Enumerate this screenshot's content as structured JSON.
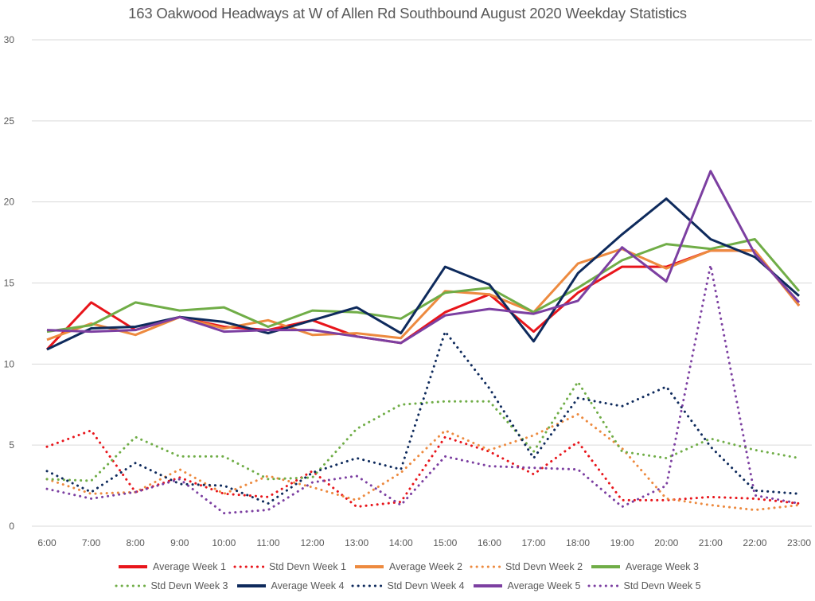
{
  "chart_data": {
    "type": "line",
    "title": "163 Oakwood Headways at W of Allen Rd Southbound August 2020 Weekday Statistics",
    "xlabel": "",
    "ylabel": "",
    "ylim": [
      0,
      30
    ],
    "yticks": [
      "0",
      "5",
      "10",
      "15",
      "20",
      "25",
      "30"
    ],
    "grid": true,
    "legend_position": "bottom",
    "categories": [
      "6:00",
      "7:00",
      "8:00",
      "9:00",
      "10:00",
      "11:00",
      "12:00",
      "13:00",
      "14:00",
      "15:00",
      "16:00",
      "17:00",
      "18:00",
      "19:00",
      "20:00",
      "21:00",
      "22:00",
      "23:00"
    ],
    "series": [
      {
        "name": "Average Week 1",
        "color": "#e8151b",
        "style": "solid",
        "values": [
          10.9,
          13.8,
          12.1,
          12.9,
          12.3,
          12.1,
          12.7,
          11.7,
          11.3,
          13.2,
          14.3,
          12.0,
          14.4,
          16.0,
          16.0,
          17.0,
          17.0,
          13.6
        ]
      },
      {
        "name": "Std Devn Week 1",
        "color": "#e8151b",
        "style": "dotted",
        "values": [
          4.9,
          5.9,
          2.1,
          3.0,
          2.0,
          1.8,
          3.4,
          1.2,
          1.5,
          5.5,
          4.6,
          3.2,
          5.2,
          1.6,
          1.6,
          1.8,
          1.7,
          1.4
        ]
      },
      {
        "name": "Average Week 2",
        "color": "#ed8a3f",
        "style": "solid",
        "values": [
          11.5,
          12.5,
          11.8,
          12.9,
          12.2,
          12.7,
          11.8,
          11.9,
          11.6,
          14.5,
          14.3,
          13.2,
          16.2,
          17.1,
          15.9,
          17.0,
          17.0,
          13.6
        ]
      },
      {
        "name": "Std Devn Week 2",
        "color": "#ed8a3f",
        "style": "dotted",
        "values": [
          2.9,
          2.0,
          2.1,
          3.5,
          2.0,
          3.1,
          2.4,
          1.6,
          3.3,
          5.9,
          4.7,
          5.6,
          6.9,
          4.8,
          1.7,
          1.3,
          1.0,
          1.3
        ]
      },
      {
        "name": "Average Week 3",
        "color": "#70ad47",
        "style": "solid",
        "values": [
          12.0,
          12.4,
          13.8,
          13.3,
          13.5,
          12.3,
          13.3,
          13.2,
          12.8,
          14.4,
          14.7,
          13.2,
          14.7,
          16.4,
          17.4,
          17.1,
          17.7,
          14.5
        ]
      },
      {
        "name": "Std Devn Week 3",
        "color": "#70ad47",
        "style": "dotted",
        "values": [
          2.9,
          2.8,
          5.5,
          4.3,
          4.3,
          2.9,
          3.0,
          6.0,
          7.5,
          7.7,
          7.7,
          4.6,
          8.9,
          4.6,
          4.2,
          5.4,
          4.7,
          4.2
        ]
      },
      {
        "name": "Average Week 4",
        "color": "#0e2a5c",
        "style": "solid",
        "values": [
          10.9,
          12.2,
          12.3,
          12.9,
          12.6,
          11.9,
          12.7,
          13.5,
          11.9,
          16.0,
          14.9,
          11.4,
          15.6,
          18.0,
          20.2,
          17.7,
          16.6,
          14.2
        ]
      },
      {
        "name": "Std Devn Week 4",
        "color": "#0e2a5c",
        "style": "dotted",
        "values": [
          3.4,
          2.1,
          3.9,
          2.6,
          2.5,
          1.4,
          3.3,
          4.2,
          3.5,
          12.0,
          8.5,
          4.2,
          7.9,
          7.4,
          8.6,
          4.9,
          2.2,
          2.0
        ]
      },
      {
        "name": "Average Week 5",
        "color": "#7c3fa1",
        "style": "solid",
        "values": [
          12.1,
          12.0,
          12.1,
          12.9,
          12.0,
          12.1,
          12.1,
          11.7,
          11.3,
          13.0,
          13.4,
          13.1,
          13.9,
          17.2,
          15.1,
          21.9,
          16.8,
          13.8
        ]
      },
      {
        "name": "Std Devn Week 5",
        "color": "#7c3fa1",
        "style": "dotted",
        "values": [
          2.3,
          1.7,
          2.1,
          2.9,
          0.8,
          1.0,
          2.7,
          3.1,
          1.3,
          4.3,
          3.7,
          3.6,
          3.5,
          1.2,
          2.5,
          16.1,
          1.9,
          1.4
        ]
      }
    ],
    "legend_rows": [
      [
        0,
        1,
        2,
        3,
        4
      ],
      [
        5,
        6,
        7,
        8,
        9
      ]
    ]
  }
}
